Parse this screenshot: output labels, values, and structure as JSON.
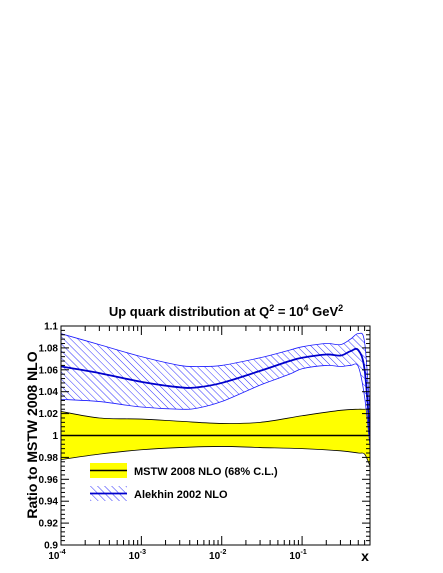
{
  "chart_data": {
    "type": "line",
    "title": "Up quark distribution at Q",
    "title_sup1": "2",
    "title_mid": " = 10",
    "title_sup2": "4",
    "title_unit": " GeV",
    "title_sup3": "2",
    "xlabel": "x",
    "ylabel": "Ratio to MSTW 2008 NLO",
    "x_scale": "log",
    "xlim": [
      0.0001,
      0.7
    ],
    "ylim": [
      0.9,
      1.1
    ],
    "x_ticks": [
      {
        "value": 0.0001,
        "base": "10",
        "exp": "-4"
      },
      {
        "value": 0.001,
        "base": "10",
        "exp": "-3"
      },
      {
        "value": 0.01,
        "base": "10",
        "exp": "-2"
      },
      {
        "value": 0.1,
        "base": "10",
        "exp": "-1"
      }
    ],
    "y_ticks": [
      {
        "value": 0.9,
        "label": "0.9"
      },
      {
        "value": 0.92,
        "label": "0.92"
      },
      {
        "value": 0.94,
        "label": "0.94"
      },
      {
        "value": 0.96,
        "label": "0.96"
      },
      {
        "value": 0.98,
        "label": "0.98"
      },
      {
        "value": 1.0,
        "label": "1"
      },
      {
        "value": 1.02,
        "label": "1.02"
      },
      {
        "value": 1.04,
        "label": "1.04"
      },
      {
        "value": 1.06,
        "label": "1.06"
      },
      {
        "value": 1.08,
        "label": "1.08"
      },
      {
        "value": 1.1,
        "label": "1.1"
      }
    ],
    "legend_placement": "bottom-left",
    "series": [
      {
        "name": "MSTW 2008 NLO (68% C.L.)",
        "style": "band-solid",
        "fill_color": "#ffff00",
        "line_color": "#000000",
        "x": [
          0.0001,
          0.0003,
          0.001,
          0.003,
          0.01,
          0.03,
          0.1,
          0.3,
          0.5,
          0.6,
          0.7
        ],
        "central": [
          1,
          1,
          1,
          1,
          1,
          1,
          1,
          1,
          1,
          1,
          1
        ],
        "upper": [
          1.022,
          1.016,
          1.015,
          1.013,
          1.011,
          1.012,
          1.018,
          1.023,
          1.024,
          1.024,
          1.025
        ],
        "lower": [
          0.978,
          0.983,
          0.987,
          0.989,
          0.99,
          0.989,
          0.988,
          0.986,
          0.984,
          0.983,
          0.972
        ]
      },
      {
        "name": "Alekhin 2002 NLO",
        "style": "band-hatched",
        "line_color": "#0000cc",
        "hatch_color": "#1a1aff",
        "x": [
          0.0001,
          0.0003,
          0.001,
          0.003,
          0.005,
          0.01,
          0.03,
          0.07,
          0.1,
          0.2,
          0.3,
          0.4,
          0.5,
          0.6,
          0.7
        ],
        "central": [
          1.063,
          1.057,
          1.049,
          1.044,
          1.044,
          1.048,
          1.059,
          1.068,
          1.071,
          1.074,
          1.073,
          1.077,
          1.078,
          1.06,
          1.0
        ],
        "upper": [
          1.093,
          1.083,
          1.072,
          1.064,
          1.063,
          1.064,
          1.071,
          1.078,
          1.081,
          1.084,
          1.083,
          1.088,
          1.093,
          1.085,
          1.02
        ],
        "lower": [
          1.033,
          1.031,
          1.026,
          1.024,
          1.025,
          1.031,
          1.046,
          1.056,
          1.061,
          1.064,
          1.063,
          1.064,
          1.063,
          1.035,
          0.99
        ]
      }
    ]
  }
}
